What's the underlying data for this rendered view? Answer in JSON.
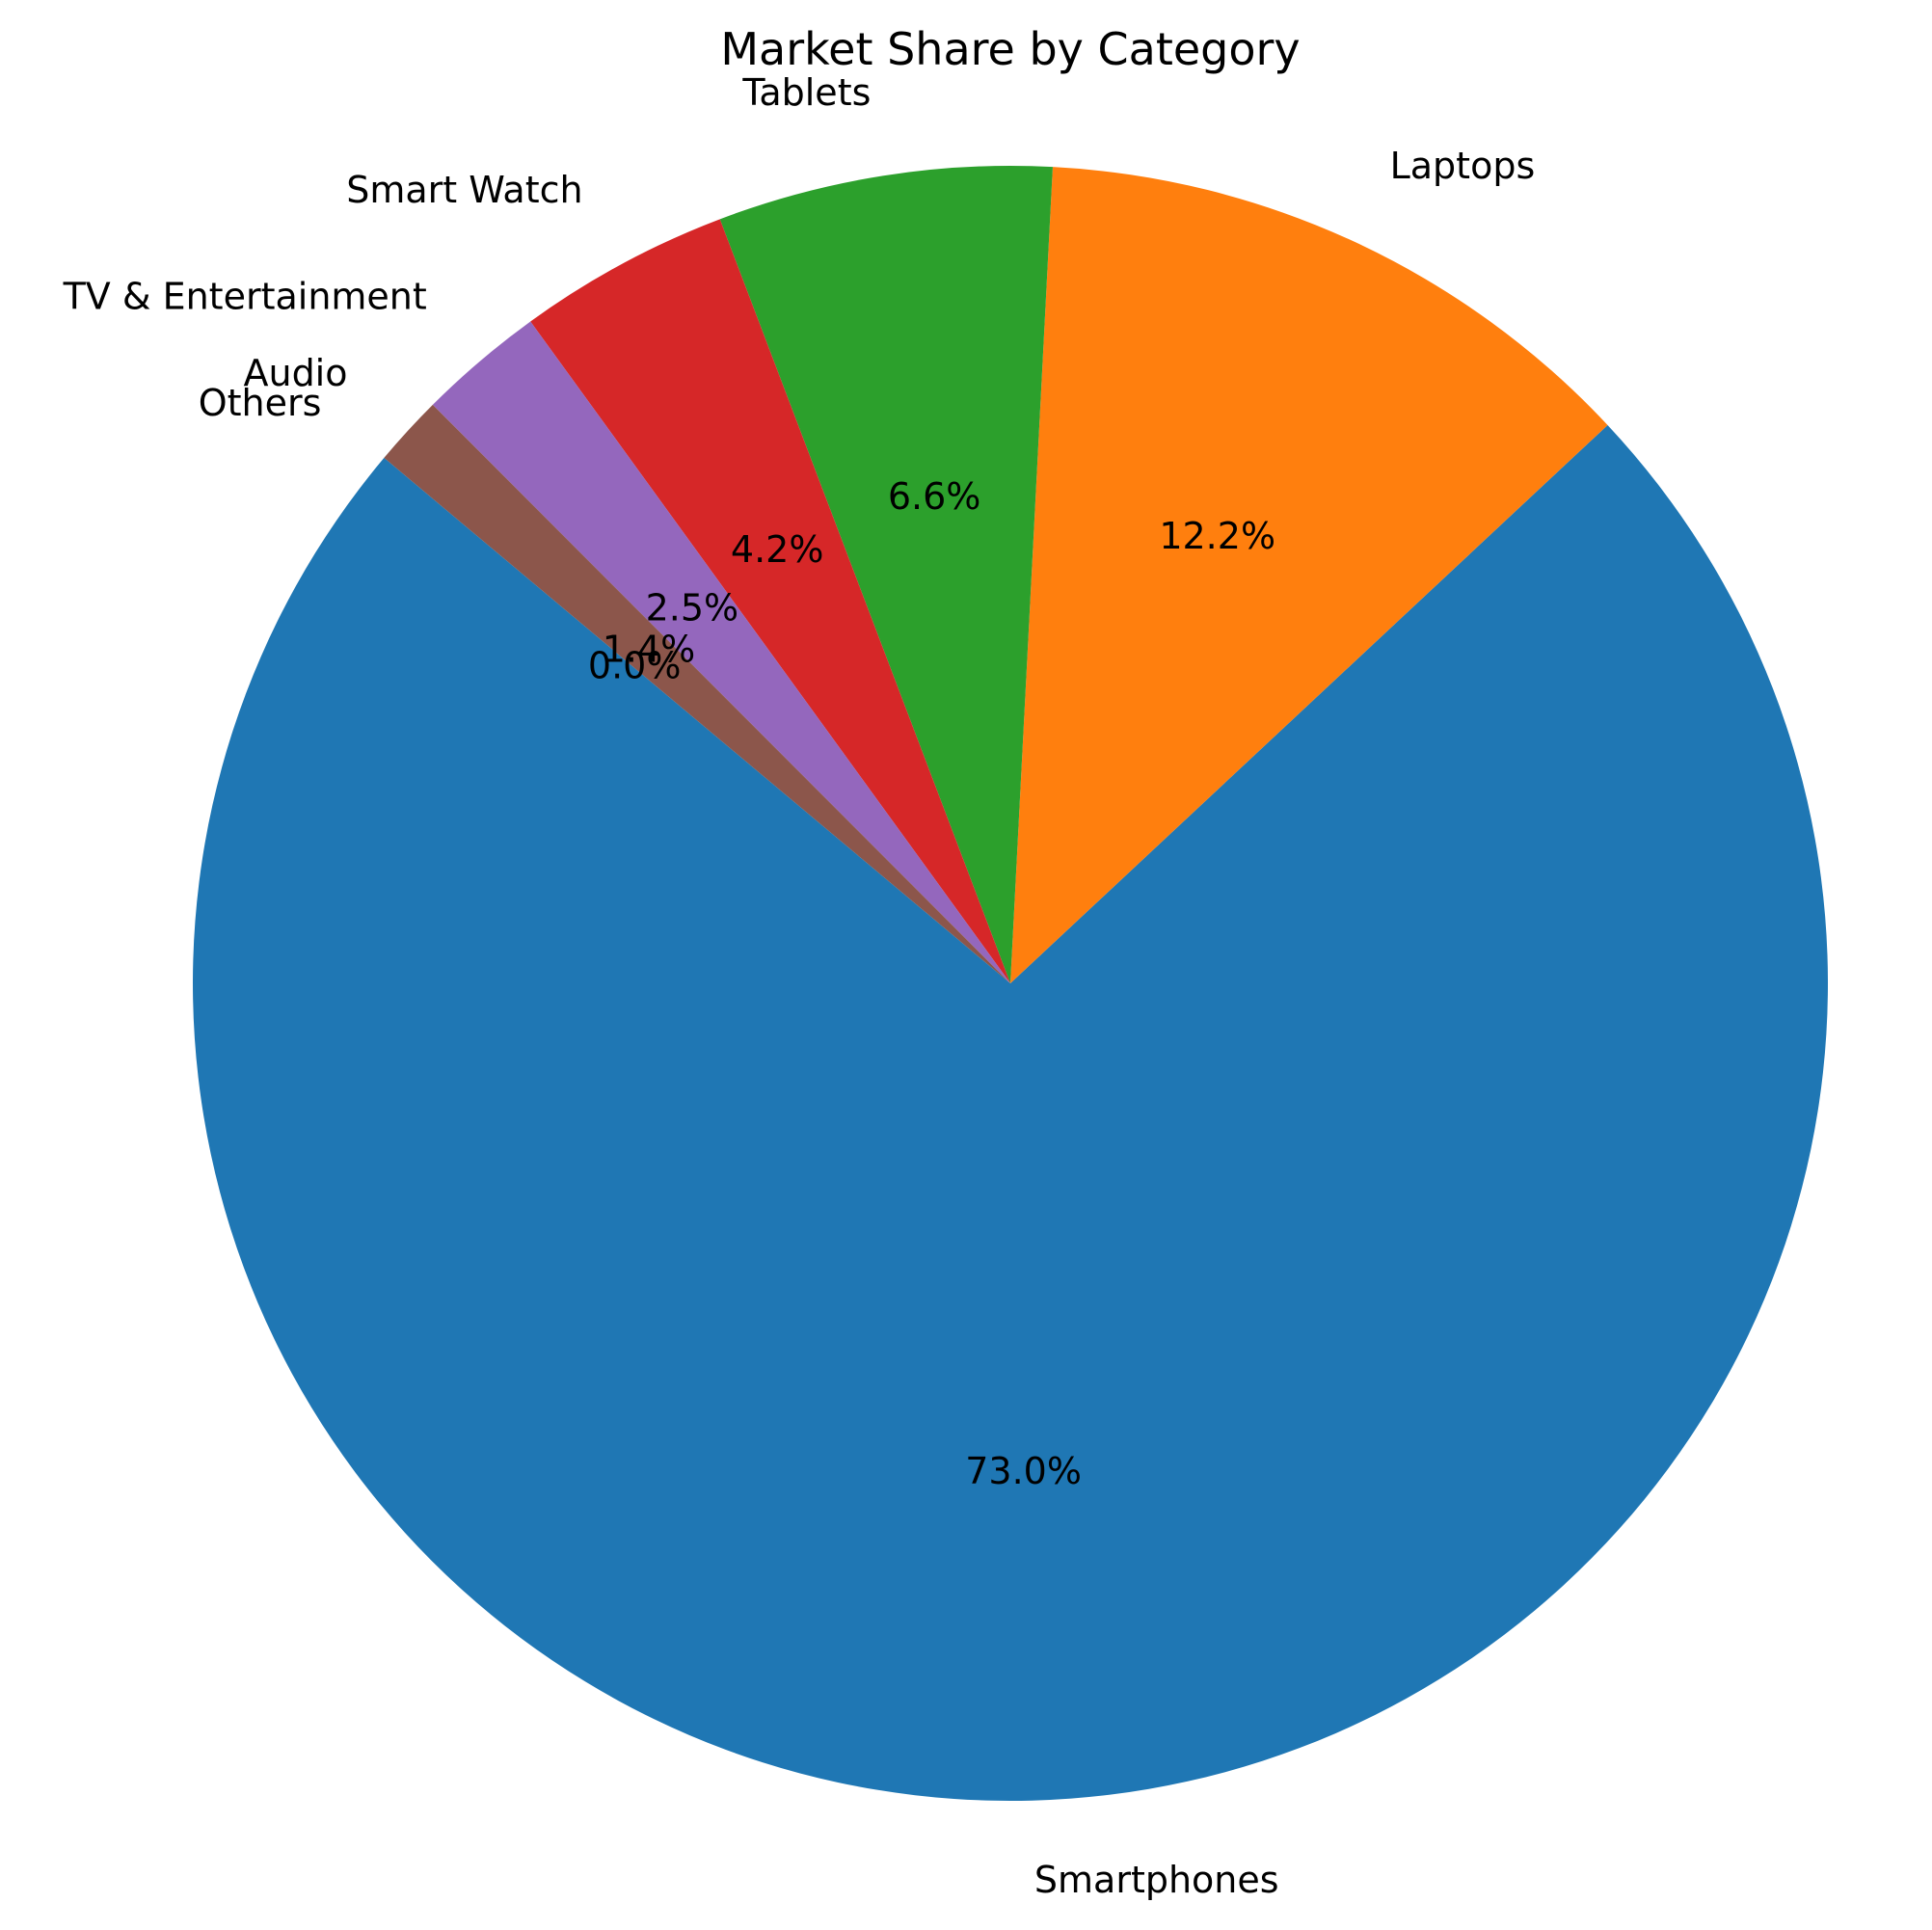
{
  "chart_data": {
    "type": "pie",
    "title": "Market Share by Category",
    "categories": [
      "Smartphones",
      "Laptops",
      "Tablets",
      "Smart Watch",
      "TV & Entertainment",
      "Audio",
      "Others"
    ],
    "values": [
      73.0,
      12.2,
      6.6,
      4.2,
      2.5,
      1.4,
      0.0
    ],
    "value_labels": [
      "73.0%",
      "12.2%",
      "6.6%",
      "4.2%",
      "2.5%",
      "1.4%",
      "0.0%"
    ],
    "colors": [
      "#1f77b4",
      "#ff7f0e",
      "#2ca02c",
      "#d62728",
      "#9467bd",
      "#8c564b",
      "#e377c2"
    ],
    "start_angle_deg": 140,
    "direction": "counterclockwise",
    "legend": "none"
  }
}
